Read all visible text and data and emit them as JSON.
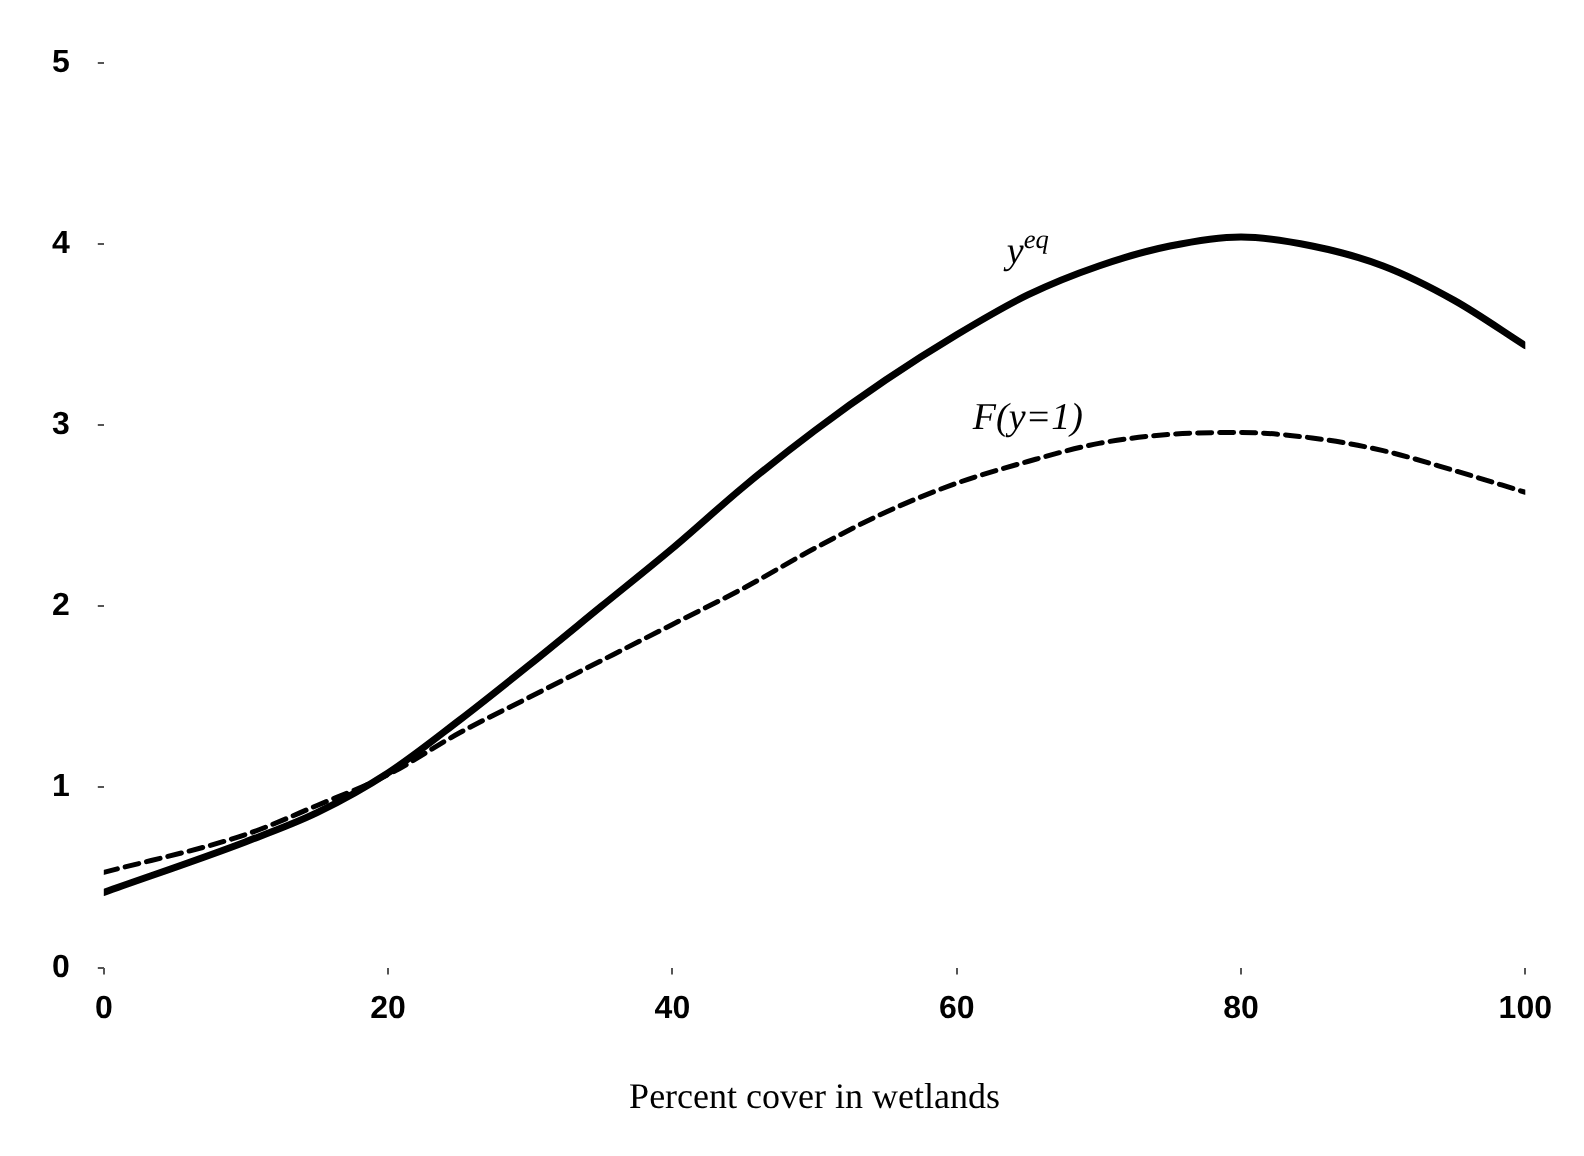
{
  "chart_data": {
    "type": "line",
    "xlabel": "Percent cover in wetlands",
    "xlim": [
      0,
      100
    ],
    "xticks": [
      0,
      20,
      40,
      60,
      80,
      100
    ],
    "ylim": [
      0,
      5
    ],
    "yticks": [
      0,
      1,
      2,
      3,
      4,
      5
    ],
    "grid": false,
    "legend": false,
    "marker": "none",
    "x": [
      0,
      10,
      15,
      20,
      25,
      30,
      35,
      40,
      45,
      50,
      55,
      60,
      65,
      70,
      75,
      80,
      85,
      90,
      95,
      100
    ],
    "series": [
      {
        "name": "y$^{eq}$",
        "color": "#000000",
        "line_style": "solid",
        "values": [
          0.42,
          0.7,
          0.86,
          1.08,
          1.37,
          1.68,
          2.0,
          2.32,
          2.66,
          2.97,
          3.25,
          3.5,
          3.72,
          3.88,
          3.99,
          4.04,
          3.99,
          3.88,
          3.69,
          3.44
        ]
      },
      {
        "name": "F(y=1)",
        "color": "#000000",
        "line_style": "dashed",
        "values": [
          0.53,
          0.74,
          0.9,
          1.07,
          1.3,
          1.5,
          1.7,
          1.9,
          2.1,
          2.32,
          2.52,
          2.68,
          2.8,
          2.9,
          2.95,
          2.96,
          2.93,
          2.86,
          2.75,
          2.63
        ]
      }
    ]
  }
}
